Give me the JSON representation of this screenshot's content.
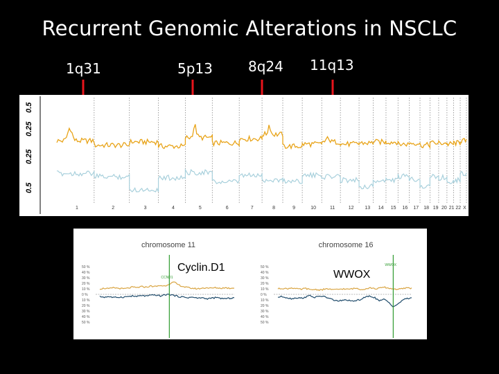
{
  "title": "Recurrent Genomic Alterations in NSCLC",
  "colors": {
    "gain": "#E8A317",
    "loss": "#A8D0DC",
    "arrow": "#E8141B",
    "chr_gain": "#D9A441",
    "chr_loss": "#1E4A6A",
    "marker_line": "#2E9A2E"
  },
  "loci": [
    {
      "label": "1q31",
      "chromosome": "1"
    },
    {
      "label": "5p13",
      "chromosome": "5"
    },
    {
      "label": "8q24",
      "chromosome": "8"
    },
    {
      "label": "11q13",
      "chromosome": "11"
    }
  ],
  "chart_data": [
    {
      "type": "line",
      "title": "",
      "y_tick_labels": [
        "0.5",
        "0.25",
        "0.25",
        "0.5"
      ],
      "chromosomes": [
        "1",
        "2",
        "3",
        "4",
        "5",
        "6",
        "7",
        "8",
        "9",
        "10",
        "11",
        "12",
        "13",
        "14",
        "15",
        "16",
        "17",
        "18",
        "19",
        "20",
        "21",
        "22",
        "X"
      ],
      "series": [
        {
          "color": "gain",
          "ylim": [
            0,
            0.5
          ],
          "values_by_chromosome": [
            0.1,
            0.06,
            0.09,
            0.05,
            0.13,
            0.08,
            0.12,
            0.16,
            0.05,
            0.07,
            0.09,
            0.07,
            0.08,
            0.09,
            0.09,
            0.07,
            0.08,
            0.06,
            0.08,
            0.08,
            0.07,
            0.08,
            0.1
          ]
        },
        {
          "color": "loss",
          "ylim": [
            0,
            0.5
          ],
          "values_by_chromosome": [
            0.06,
            0.09,
            0.21,
            0.1,
            0.05,
            0.14,
            0.08,
            0.12,
            0.13,
            0.08,
            0.09,
            0.12,
            0.18,
            0.13,
            0.12,
            0.09,
            0.11,
            0.18,
            0.09,
            0.1,
            0.13,
            0.12,
            0.06
          ]
        }
      ],
      "peaks": [
        {
          "chromosome": "1",
          "label": "1q31",
          "value": 0.22
        },
        {
          "chromosome": "5",
          "label": "5p13",
          "value": 0.24
        },
        {
          "chromosome": "8",
          "label": "8q24",
          "value": 0.25
        },
        {
          "chromosome": "11",
          "label": "11q13",
          "value": 0.14
        }
      ]
    },
    {
      "type": "line",
      "title": "chromosome 11",
      "annotation": "Cyclin.D1",
      "marker_label": "CCND1",
      "y_tick_labels": [
        "50 %",
        "40 %",
        "30 %",
        "20 %",
        "10 %",
        "0 %",
        "10 %",
        "20 %",
        "30 %",
        "40 %",
        "50 %"
      ],
      "ylim": [
        -50,
        50
      ],
      "series": [
        {
          "color": "chr_gain",
          "values": [
            10,
            11,
            10,
            12,
            11,
            10,
            11,
            13,
            12,
            14,
            13,
            15,
            14,
            16,
            15,
            19,
            22,
            17,
            14,
            12,
            11,
            10,
            11,
            12,
            11,
            12,
            11,
            12,
            11,
            12
          ]
        },
        {
          "color": "chr_loss",
          "values": [
            -4,
            -5,
            -4,
            -6,
            -5,
            -5,
            -4,
            -3,
            -4,
            -2,
            -3,
            -2,
            -1,
            -3,
            -1,
            0,
            -2,
            -4,
            -5,
            -6,
            -5,
            -7,
            -6,
            -8,
            -7,
            -6,
            -7,
            -8,
            -7,
            -6
          ]
        }
      ],
      "marker_index": 15
    },
    {
      "type": "line",
      "title": "chromosome 16",
      "annotation": "WWOX",
      "marker_label": "WWOX",
      "y_tick_labels": [
        "50 %",
        "40 %",
        "30 %",
        "20 %",
        "10 %",
        "0 %",
        "10 %",
        "20 %",
        "30 %",
        "40 %",
        "50 %"
      ],
      "ylim": [
        -50,
        50
      ],
      "series": [
        {
          "color": "chr_gain",
          "values": [
            10,
            11,
            10,
            12,
            10,
            9,
            11,
            8,
            9,
            8,
            9,
            10,
            8,
            9,
            10,
            9,
            10,
            11,
            9,
            10,
            12,
            10,
            11,
            13,
            11,
            10,
            9,
            10,
            12,
            11
          ]
        },
        {
          "color": "chr_loss",
          "values": [
            -5,
            -4,
            -6,
            -8,
            -6,
            -7,
            -5,
            -2,
            -6,
            -3,
            -4,
            -7,
            -10,
            -12,
            -11,
            -10,
            -13,
            -11,
            -9,
            -5,
            -3,
            -6,
            -12,
            -9,
            -14,
            -22,
            -18,
            -10,
            -8,
            -6
          ]
        }
      ],
      "marker_index": 25
    }
  ]
}
